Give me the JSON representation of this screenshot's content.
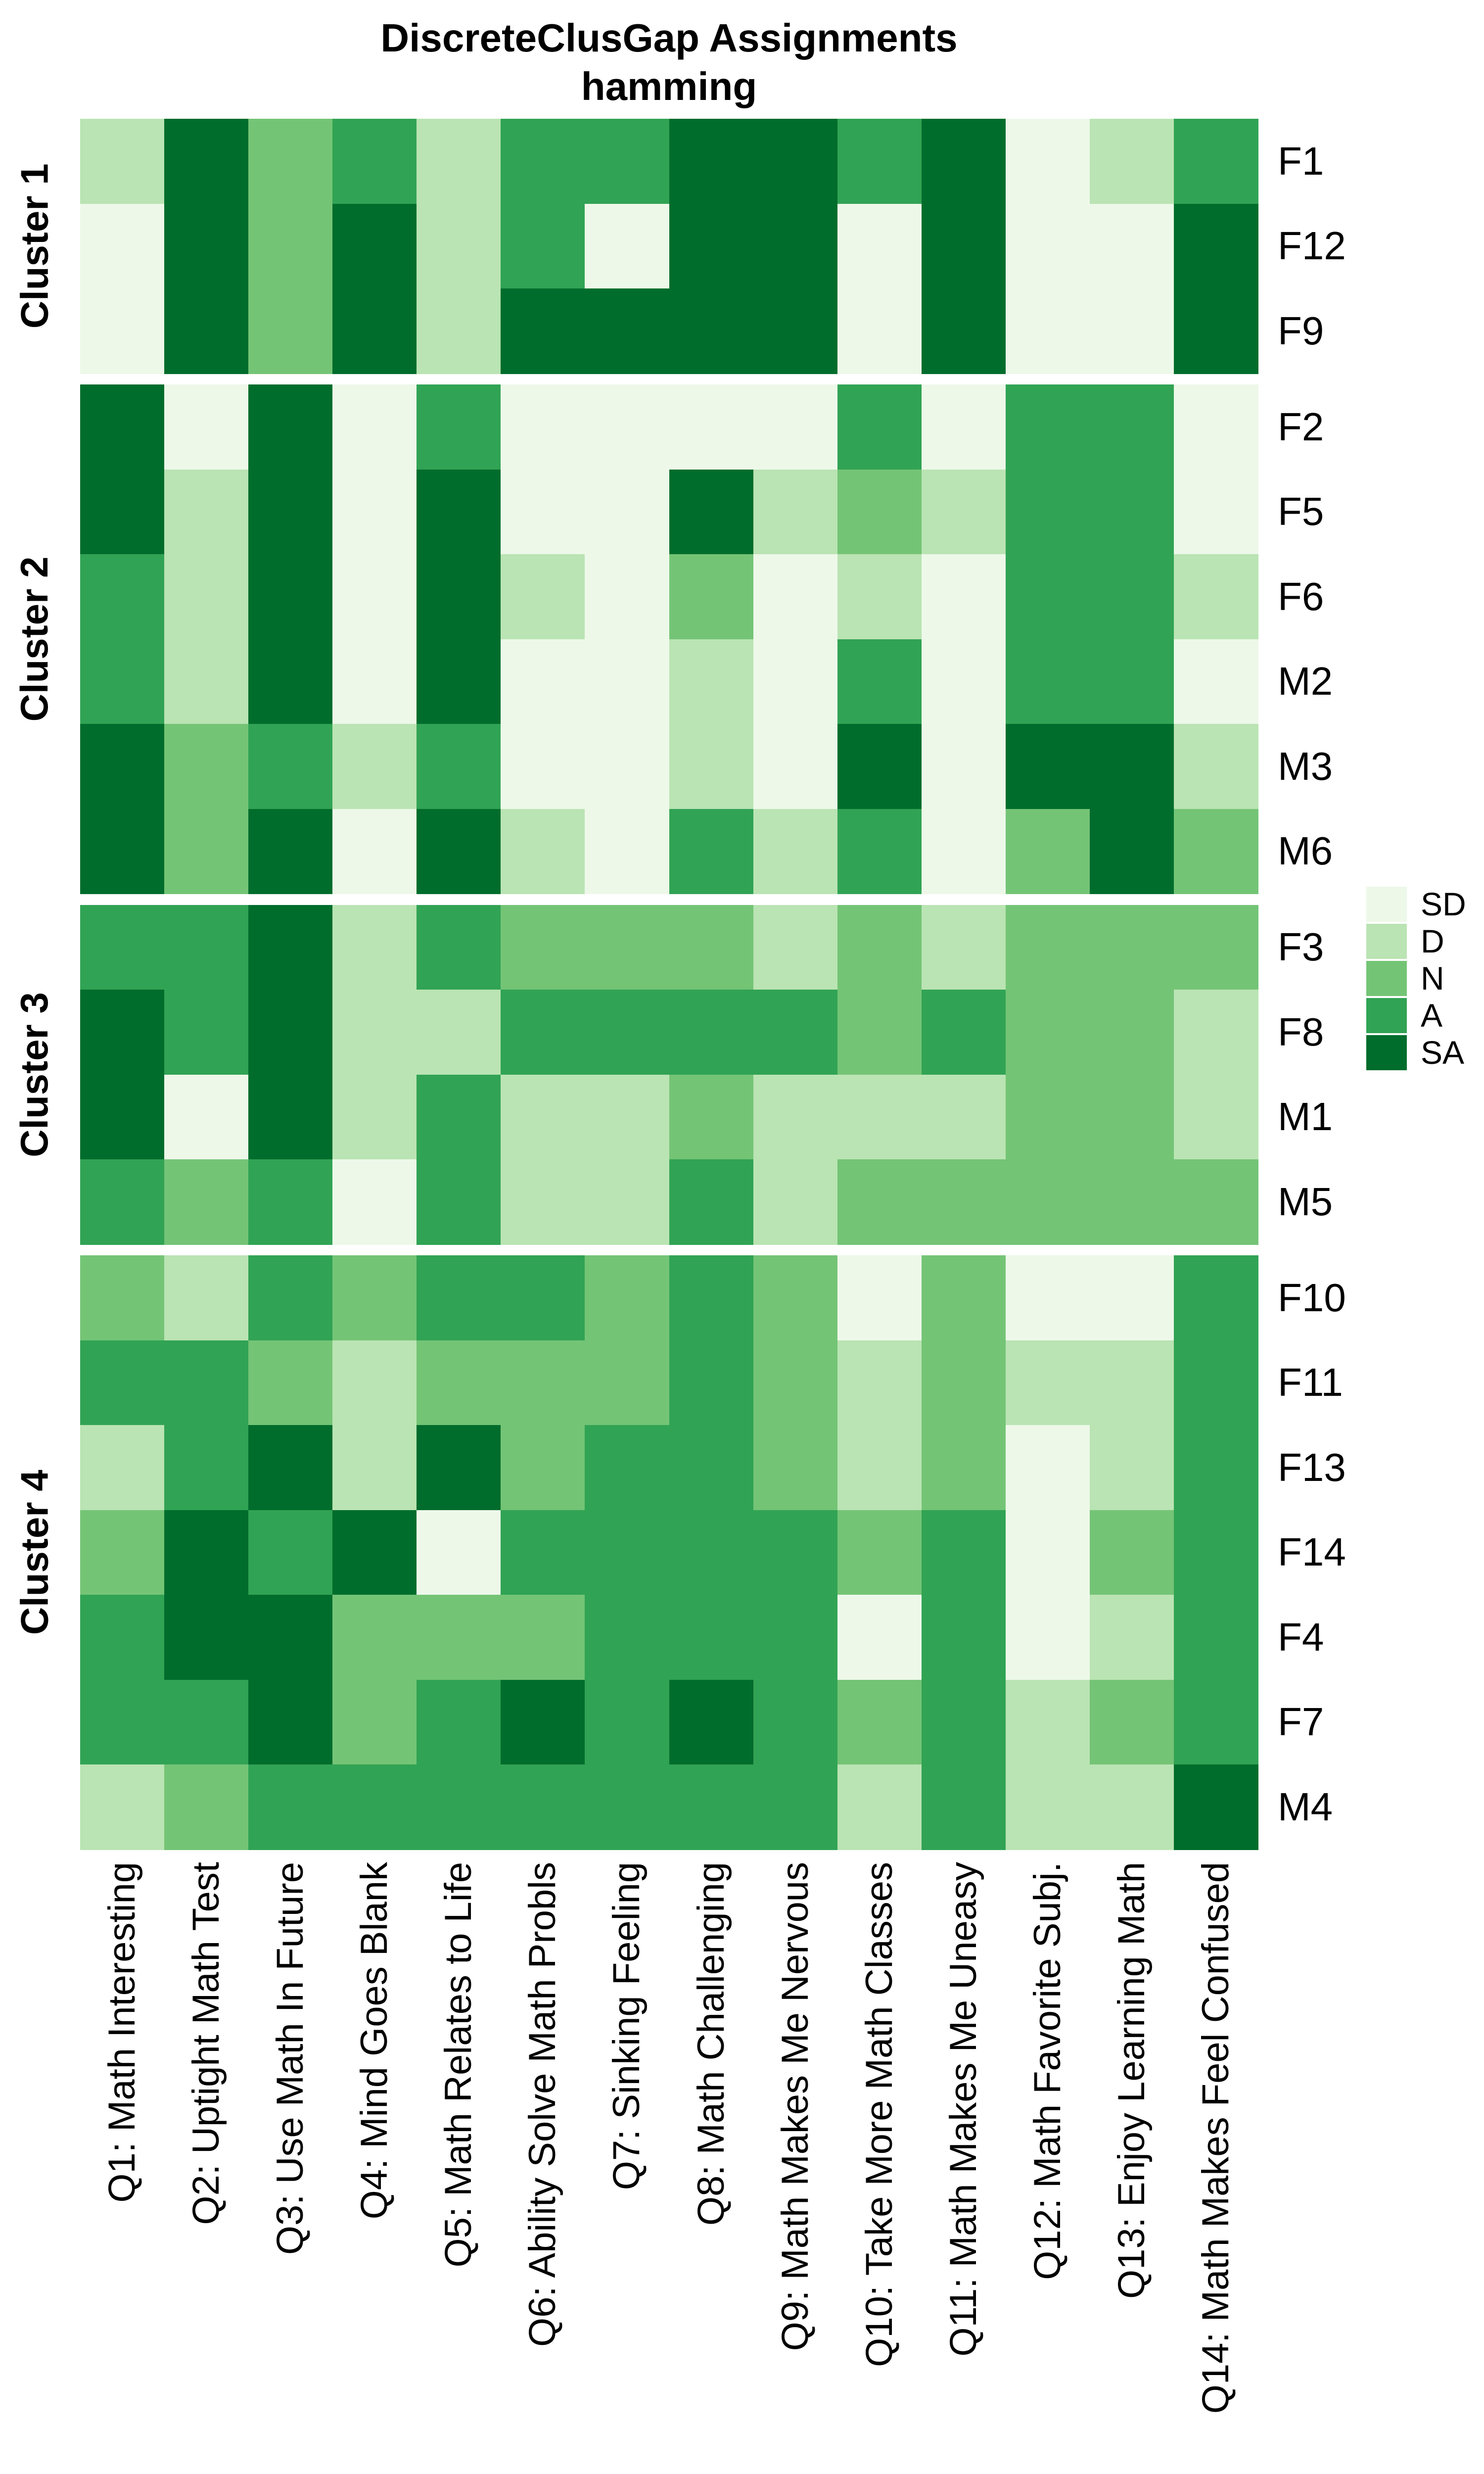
{
  "chart_data": {
    "type": "heatmap",
    "title": "DiscreteClusGap Assignments",
    "subtitle": "hamming",
    "value_scale": [
      "SD",
      "D",
      "N",
      "A",
      "SA"
    ],
    "level_colors": {
      "SD": "#edf8e9",
      "D": "#bae4b3",
      "N": "#74c476",
      "A": "#31a354",
      "SA": "#006d2c"
    },
    "legend": {
      "position": "right",
      "items": [
        {
          "label": "SD",
          "color": "#edf8e9"
        },
        {
          "label": "D",
          "color": "#bae4b3"
        },
        {
          "label": "N",
          "color": "#74c476"
        },
        {
          "label": "A",
          "color": "#31a354"
        },
        {
          "label": "SA",
          "color": "#006d2c"
        }
      ]
    },
    "x_labels": [
      "Q1: Math Interesting",
      "Q2: Uptight Math Test",
      "Q3: Use Math In Future",
      "Q4: Mind Goes Blank",
      "Q5: Math Relates to Life",
      "Q6: Ability Solve Math Probls",
      "Q7: Sinking Feeling",
      "Q8: Math Challenging",
      "Q9: Math Makes Me Nervous",
      "Q10: Take More Math Classes",
      "Q11: Math Makes Me Uneasy",
      "Q12: Math Favorite Subj.",
      "Q13: Enjoy Learning Math",
      "Q14: Math Makes Feel Confused"
    ],
    "clusters": [
      {
        "name": "Cluster 1",
        "rows": [
          {
            "label": "F1",
            "values": [
              "D",
              "SA",
              "N",
              "A",
              "D",
              "A",
              "A",
              "SA",
              "SA",
              "A",
              "SA",
              "SD",
              "D",
              "A"
            ]
          },
          {
            "label": "F12",
            "values": [
              "SD",
              "SA",
              "N",
              "SA",
              "D",
              "A",
              "SD",
              "SA",
              "SA",
              "SD",
              "SA",
              "SD",
              "SD",
              "SA"
            ]
          },
          {
            "label": "F9",
            "values": [
              "SD",
              "SA",
              "N",
              "SA",
              "D",
              "SA",
              "SA",
              "SA",
              "SA",
              "SD",
              "SA",
              "SD",
              "SD",
              "SA"
            ]
          }
        ]
      },
      {
        "name": "Cluster 2",
        "rows": [
          {
            "label": "F2",
            "values": [
              "SA",
              "SD",
              "SA",
              "SD",
              "A",
              "SD",
              "SD",
              "SD",
              "SD",
              "A",
              "SD",
              "A",
              "A",
              "SD"
            ]
          },
          {
            "label": "F5",
            "values": [
              "SA",
              "D",
              "SA",
              "SD",
              "SA",
              "SD",
              "SD",
              "SA",
              "D",
              "N",
              "D",
              "A",
              "A",
              "SD"
            ]
          },
          {
            "label": "F6",
            "values": [
              "A",
              "D",
              "SA",
              "SD",
              "SA",
              "D",
              "SD",
              "N",
              "SD",
              "D",
              "SD",
              "A",
              "A",
              "D"
            ]
          },
          {
            "label": "M2",
            "values": [
              "A",
              "D",
              "SA",
              "SD",
              "SA",
              "SD",
              "SD",
              "D",
              "SD",
              "A",
              "SD",
              "A",
              "A",
              "SD"
            ]
          },
          {
            "label": "M3",
            "values": [
              "SA",
              "N",
              "A",
              "D",
              "A",
              "SD",
              "SD",
              "D",
              "SD",
              "SA",
              "SD",
              "SA",
              "SA",
              "D"
            ]
          },
          {
            "label": "M6",
            "values": [
              "SA",
              "N",
              "SA",
              "SD",
              "SA",
              "D",
              "SD",
              "A",
              "D",
              "A",
              "SD",
              "N",
              "SA",
              "N"
            ]
          }
        ]
      },
      {
        "name": "Cluster 3",
        "rows": [
          {
            "label": "F3",
            "values": [
              "A",
              "A",
              "SA",
              "D",
              "A",
              "N",
              "N",
              "N",
              "D",
              "N",
              "D",
              "N",
              "N",
              "N"
            ]
          },
          {
            "label": "F8",
            "values": [
              "SA",
              "A",
              "SA",
              "D",
              "D",
              "A",
              "A",
              "A",
              "A",
              "N",
              "A",
              "N",
              "N",
              "D"
            ]
          },
          {
            "label": "M1",
            "values": [
              "SA",
              "SD",
              "SA",
              "D",
              "A",
              "D",
              "D",
              "N",
              "D",
              "D",
              "D",
              "N",
              "N",
              "D"
            ]
          },
          {
            "label": "M5",
            "values": [
              "A",
              "N",
              "A",
              "SD",
              "A",
              "D",
              "D",
              "A",
              "D",
              "N",
              "N",
              "N",
              "N",
              "N"
            ]
          }
        ]
      },
      {
        "name": "Cluster 4",
        "rows": [
          {
            "label": "F10",
            "values": [
              "N",
              "D",
              "A",
              "N",
              "A",
              "A",
              "N",
              "A",
              "N",
              "SD",
              "N",
              "SD",
              "SD",
              "A"
            ]
          },
          {
            "label": "F11",
            "values": [
              "A",
              "A",
              "N",
              "D",
              "N",
              "N",
              "N",
              "A",
              "N",
              "D",
              "N",
              "D",
              "D",
              "A"
            ]
          },
          {
            "label": "F13",
            "values": [
              "D",
              "A",
              "SA",
              "D",
              "SA",
              "N",
              "A",
              "A",
              "N",
              "D",
              "N",
              "SD",
              "D",
              "A"
            ]
          },
          {
            "label": "F14",
            "values": [
              "N",
              "SA",
              "A",
              "SA",
              "SD",
              "A",
              "A",
              "A",
              "A",
              "N",
              "A",
              "SD",
              "N",
              "A"
            ]
          },
          {
            "label": "F4",
            "values": [
              "A",
              "SA",
              "SA",
              "N",
              "N",
              "N",
              "A",
              "A",
              "A",
              "SD",
              "A",
              "SD",
              "D",
              "A"
            ]
          },
          {
            "label": "F7",
            "values": [
              "A",
              "A",
              "SA",
              "N",
              "A",
              "SA",
              "A",
              "SA",
              "A",
              "N",
              "A",
              "D",
              "N",
              "A"
            ]
          },
          {
            "label": "M4",
            "values": [
              "D",
              "N",
              "A",
              "A",
              "A",
              "A",
              "A",
              "A",
              "A",
              "D",
              "A",
              "D",
              "D",
              "SA"
            ]
          }
        ]
      }
    ]
  }
}
